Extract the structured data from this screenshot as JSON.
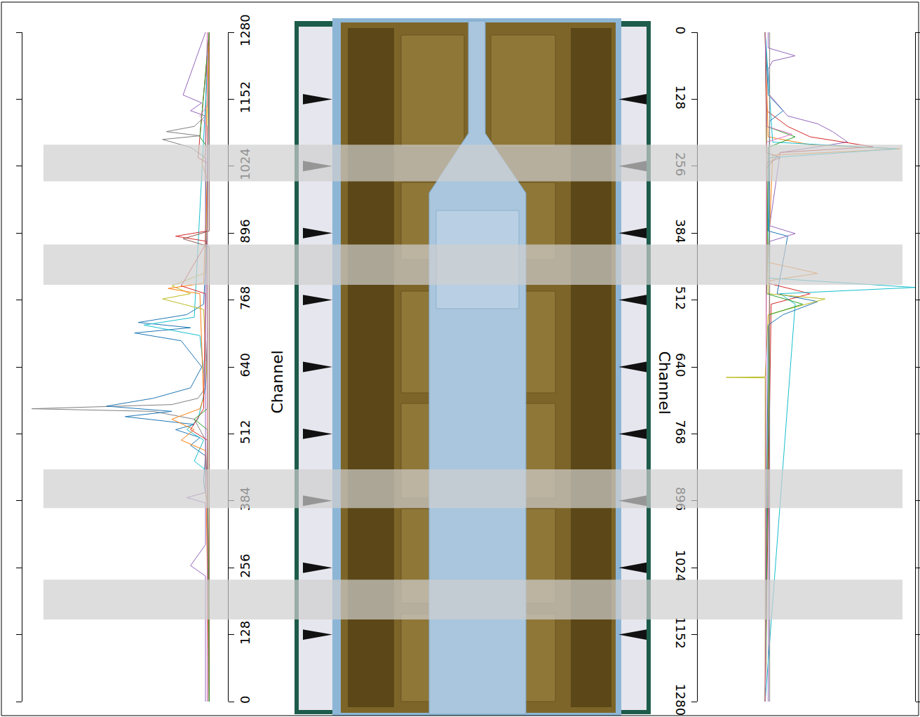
{
  "chart_data": [
    {
      "type": "line",
      "x_label": "Channel",
      "xlim": [
        0,
        1280
      ],
      "xticks": [
        0,
        128,
        256,
        384,
        512,
        640,
        768,
        896,
        1024,
        1152,
        1280
      ],
      "ylim": [
        -10,
        100
      ],
      "tick_labels": "x",
      "bands": [
        [
          995,
          1065
        ],
        [
          797,
          874
        ],
        [
          370,
          444
        ],
        [
          157,
          233
        ]
      ],
      "series": [
        {
          "color": "#7f7f7f",
          "x": [
            0,
            400,
            500,
            540,
            555,
            560,
            568,
            580,
            600,
            700,
            1040,
            1060,
            1075,
            1082,
            1090,
            1100,
            1120,
            1280
          ],
          "values": [
            1,
            1,
            2,
            8,
            30,
            95,
            20,
            6,
            2,
            1,
            2,
            10,
            25,
            5,
            23,
            8,
            2,
            1
          ]
        },
        {
          "color": "#1f77b4",
          "x": [
            0,
            380,
            420,
            470,
            490,
            505,
            520,
            530,
            545,
            555,
            565,
            580,
            600,
            640,
            690,
            705,
            715,
            725,
            740,
            760,
            900,
            1280
          ],
          "values": [
            0,
            1,
            3,
            2,
            10,
            5,
            18,
            8,
            45,
            20,
            55,
            30,
            10,
            4,
            15,
            40,
            10,
            38,
            12,
            3,
            1,
            0
          ]
        },
        {
          "color": "#17becf",
          "x": [
            0,
            440,
            460,
            500,
            520,
            540,
            600,
            700,
            720,
            735,
            1280
          ],
          "values": [
            0,
            1,
            8,
            3,
            12,
            6,
            2,
            5,
            35,
            8,
            0
          ]
        },
        {
          "color": "#bcbd22",
          "x": [
            0,
            600,
            750,
            770,
            780,
            795,
            820,
            1280
          ],
          "values": [
            0,
            1,
            3,
            25,
            10,
            20,
            2,
            0
          ]
        },
        {
          "color": "#ff7f0e",
          "x": [
            0,
            480,
            500,
            520,
            540,
            560,
            580,
            780,
            790,
            800,
            1000,
            1030,
            1050,
            1280
          ],
          "values": [
            0,
            2,
            15,
            8,
            20,
            5,
            3,
            5,
            22,
            3,
            1,
            4,
            2,
            0
          ]
        },
        {
          "color": "#d62728",
          "x": [
            0,
            500,
            520,
            560,
            780,
            795,
            880,
            890,
            900,
            1030,
            1040,
            1280
          ],
          "values": [
            0,
            1,
            10,
            3,
            2,
            15,
            1,
            18,
            1,
            1,
            6,
            0
          ]
        },
        {
          "color": "#9467bd",
          "x": [
            0,
            240,
            260,
            300,
            380,
            390,
            400,
            1120,
            1130,
            1145,
            1160,
            1280
          ],
          "values": [
            2,
            2,
            10,
            2,
            2,
            12,
            2,
            2,
            10,
            4,
            14,
            2
          ]
        },
        {
          "color": "#8c564b",
          "x": [
            0,
            870,
            885,
            900,
            1280
          ],
          "values": [
            0,
            0,
            14,
            0,
            0
          ]
        },
        {
          "color": "#2ca02c",
          "x": [
            0,
            520,
            540,
            560,
            1060,
            1080,
            1280
          ],
          "values": [
            0,
            1,
            8,
            1,
            1,
            5,
            0
          ]
        },
        {
          "color": "#e377c2",
          "x": [
            0,
            1100,
            1120,
            1140,
            1280
          ],
          "values": [
            1,
            1,
            5,
            1,
            1
          ]
        }
      ]
    },
    {
      "type": "line",
      "x_label": "Channel",
      "xlim": [
        0,
        1280
      ],
      "xticks": [
        0,
        128,
        256,
        384,
        512,
        640,
        768,
        896,
        1024,
        1152,
        1280
      ],
      "ylim": [
        -45,
        100
      ],
      "tick_labels": "x",
      "bands": [
        [
          215,
          285
        ],
        [
          406,
          483
        ],
        [
          836,
          910
        ],
        [
          1047,
          1123
        ]
      ],
      "series": [
        {
          "color": "#9467bd",
          "x": [
            0,
            30,
            45,
            55,
            70,
            120,
            160,
            175,
            190,
            210,
            230,
            370,
            385,
            400,
            1280
          ],
          "values": [
            2,
            2,
            20,
            5,
            2,
            3,
            15,
            35,
            45,
            55,
            10,
            3,
            20,
            3,
            2
          ]
        },
        {
          "color": "#d62728",
          "x": [
            0,
            150,
            180,
            200,
            219,
            230,
            260,
            480,
            500,
            520,
            1280
          ],
          "values": [
            0,
            1,
            15,
            30,
            72,
            10,
            1,
            2,
            30,
            4,
            0
          ]
        },
        {
          "color": "#ff7f0e",
          "x": [
            0,
            200,
            215,
            223,
            235,
            440,
            461,
            475,
            1280
          ],
          "values": [
            0,
            2,
            30,
            90,
            5,
            2,
            35,
            3,
            0
          ]
        },
        {
          "color": "#17becf",
          "x": [
            0,
            210,
            223,
            240,
            470,
            488,
            500,
            520,
            1280
          ],
          "values": [
            0,
            5,
            88,
            3,
            2,
            100,
            10,
            20,
            0
          ]
        },
        {
          "color": "#1f77b4",
          "x": [
            0,
            120,
            150,
            170,
            380,
            390,
            500,
            515,
            540,
            560,
            1280
          ],
          "values": [
            0,
            2,
            12,
            3,
            2,
            15,
            8,
            35,
            12,
            2,
            0
          ]
        },
        {
          "color": "#bcbd22",
          "x": [
            0,
            500,
            510,
            530,
            540,
            659,
            660,
            661,
            1280
          ],
          "values": [
            0,
            2,
            40,
            15,
            2,
            0,
            -26,
            0,
            0
          ]
        },
        {
          "color": "#2ca02c",
          "x": [
            0,
            180,
            200,
            220,
            500,
            520,
            540,
            1280
          ],
          "values": [
            0,
            1,
            20,
            2,
            1,
            25,
            3,
            0
          ]
        },
        {
          "color": "#8c564b",
          "x": [
            0,
            230,
            240,
            250,
            1280
          ],
          "values": [
            0,
            1,
            10,
            1,
            0
          ]
        },
        {
          "color": "#e377c2",
          "x": [
            0,
            180,
            195,
            210,
            1280
          ],
          "values": [
            0,
            1,
            18,
            1,
            0
          ]
        },
        {
          "color": "#7f7f7f",
          "x": [
            0,
            1280
          ],
          "values": [
            3,
            3
          ]
        }
      ]
    }
  ]
}
